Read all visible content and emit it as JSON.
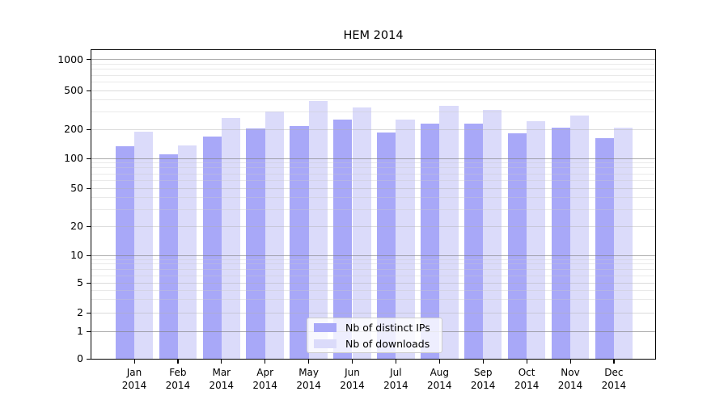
{
  "chart_data": {
    "type": "bar",
    "title": "HEM 2014",
    "categories": [
      {
        "month": "Jan",
        "year": "2014"
      },
      {
        "month": "Feb",
        "year": "2014"
      },
      {
        "month": "Mar",
        "year": "2014"
      },
      {
        "month": "Apr",
        "year": "2014"
      },
      {
        "month": "May",
        "year": "2014"
      },
      {
        "month": "Jun",
        "year": "2014"
      },
      {
        "month": "Jul",
        "year": "2014"
      },
      {
        "month": "Aug",
        "year": "2014"
      },
      {
        "month": "Sep",
        "year": "2014"
      },
      {
        "month": "Oct",
        "year": "2014"
      },
      {
        "month": "Nov",
        "year": "2014"
      },
      {
        "month": "Dec",
        "year": "2014"
      }
    ],
    "series": [
      {
        "name": "Nb of distinct IPs",
        "color": "#a8a8f8",
        "values": [
          133,
          110,
          168,
          202,
          217,
          251,
          185,
          228,
          228,
          181,
          206,
          162
        ]
      },
      {
        "name": "Nb of downloads",
        "color": "#dbdbfa",
        "values": [
          190,
          136,
          263,
          303,
          391,
          335,
          251,
          348,
          316,
          242,
          278,
          206
        ]
      }
    ],
    "yticks": [
      0,
      1,
      2,
      5,
      10,
      20,
      50,
      100,
      200,
      500,
      1000
    ],
    "minor_grid_values": [
      3,
      4,
      6,
      7,
      8,
      9,
      30,
      40,
      60,
      70,
      80,
      90,
      300,
      400,
      600,
      700,
      800,
      900
    ],
    "ylim": [
      0,
      1000
    ],
    "yscale": "symlog",
    "grid": true,
    "legend_position": "lower center",
    "colors": {
      "decade_gridline": "rgba(128,128,128,0.65)",
      "sub_gridline": "rgba(175,175,175,0.45)",
      "minor_gridline": "rgba(200,200,200,0.40)",
      "axis": "#000000"
    }
  }
}
